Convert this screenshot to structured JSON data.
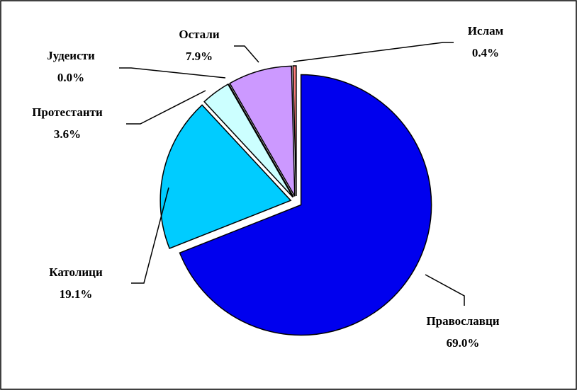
{
  "chart_data": {
    "type": "pie",
    "categories": [
      "Православци",
      "Католици",
      "Протестанти",
      "Јудеисти",
      "Остали",
      "Ислам"
    ],
    "values": [
      69.0,
      19.1,
      3.6,
      0.0,
      7.9,
      0.4
    ],
    "value_labels": [
      "69.0%",
      "19.1%",
      "3.6%",
      "0.0%",
      "7.9%",
      "0.4%"
    ],
    "colors": [
      "#0000ee",
      "#00ccff",
      "#ccffff",
      "#9999ff",
      "#cc99ff",
      "#ff7f7f"
    ]
  }
}
